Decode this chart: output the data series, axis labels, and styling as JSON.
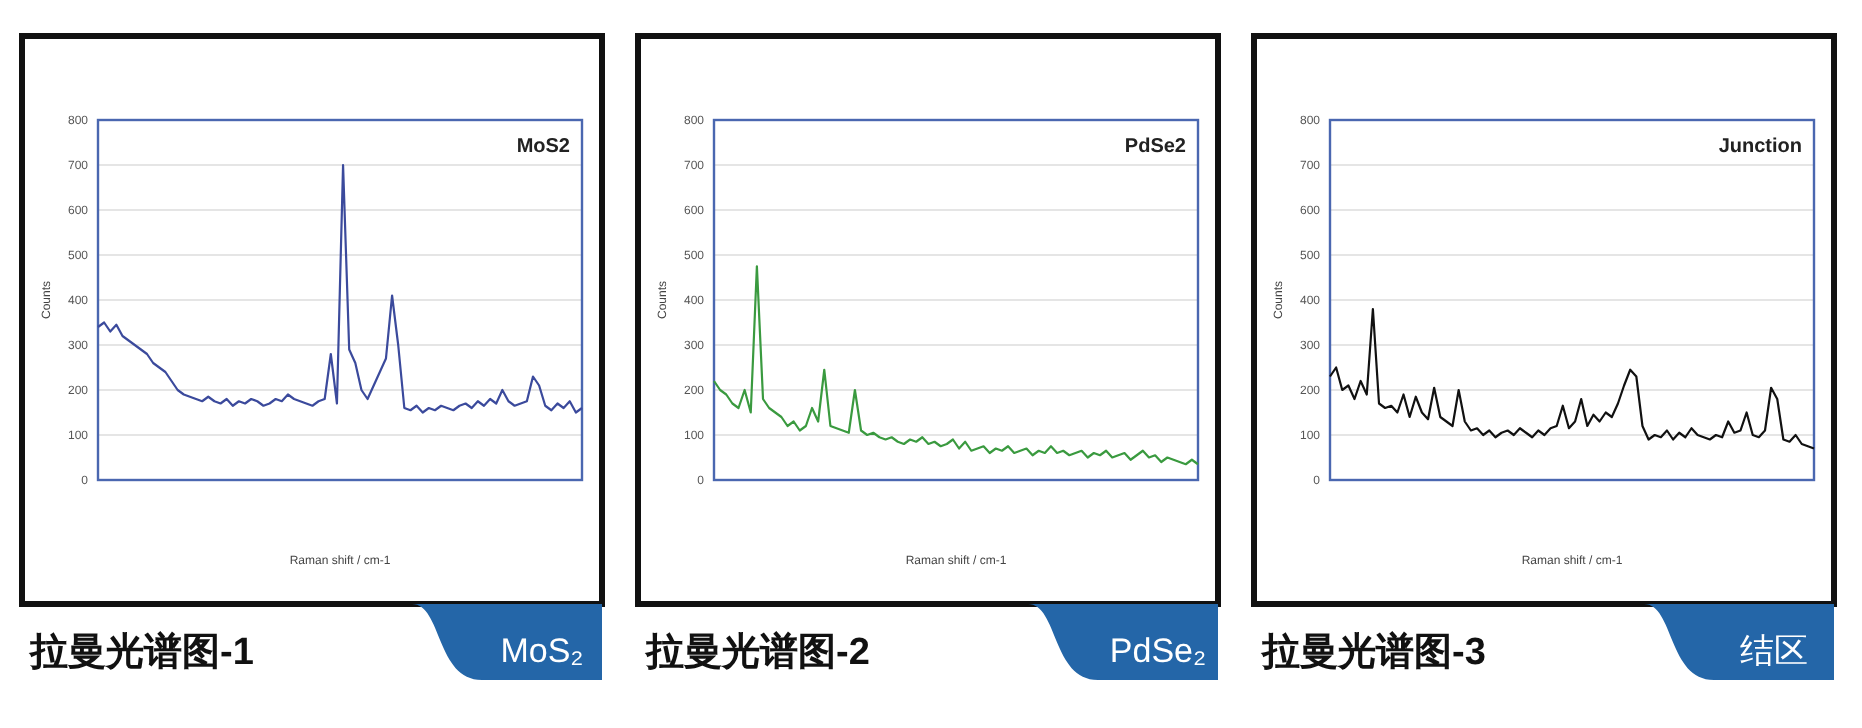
{
  "chart_data": [
    {
      "type": "line",
      "title": "拉曼光谱图-1",
      "subtitle": "MoS₂",
      "annotations": [
        "MoS2"
      ],
      "xlabel": "Raman shift / cm-1",
      "ylabel": "Counts",
      "ylim": [
        0,
        800
      ],
      "yticks": [
        0,
        100,
        200,
        300,
        400,
        500,
        600,
        700,
        800
      ],
      "grid": "y",
      "tick_labels": "y",
      "categories": [
        null,
        null,
        null,
        null,
        null,
        null,
        null,
        null,
        null,
        null,
        null,
        null,
        null,
        null,
        null,
        null,
        null,
        null,
        null,
        null,
        null,
        null,
        null,
        null,
        null,
        null,
        null,
        null,
        null,
        null,
        null,
        null,
        null,
        null,
        null,
        null,
        null,
        null,
        null,
        null,
        null,
        null,
        null,
        null,
        null,
        null,
        null,
        null,
        null,
        null,
        null,
        null,
        null,
        null,
        null,
        null,
        null,
        null,
        null,
        null,
        null,
        null,
        null,
        null,
        null,
        null,
        null,
        null,
        null,
        null,
        null,
        null,
        null,
        null,
        null,
        null,
        null,
        null,
        null,
        null
      ],
      "series": [
        {
          "color": "#3b4a9c",
          "values": [
            340,
            350,
            330,
            345,
            320,
            310,
            300,
            290,
            280,
            260,
            250,
            240,
            220,
            200,
            190,
            185,
            180,
            175,
            185,
            175,
            170,
            180,
            165,
            175,
            170,
            180,
            175,
            165,
            170,
            180,
            175,
            190,
            180,
            175,
            170,
            165,
            175,
            180,
            280,
            170,
            700,
            290,
            260,
            200,
            180,
            210,
            240,
            270,
            410,
            300,
            160,
            155,
            165,
            150,
            160,
            155,
            165,
            160,
            155,
            165,
            170,
            160,
            175,
            165,
            180,
            170,
            200,
            175,
            165,
            170,
            175,
            230,
            210,
            165,
            155,
            170,
            160,
            175,
            150,
            160
          ]
        }
      ]
    },
    {
      "type": "line",
      "title": "拉曼光谱图-2",
      "subtitle": "PdSe₂",
      "annotations": [
        "PdSe2"
      ],
      "xlabel": "Raman shift / cm-1",
      "ylabel": "Counts",
      "ylim": [
        0,
        800
      ],
      "yticks": [
        0,
        100,
        200,
        300,
        400,
        500,
        600,
        700,
        800
      ],
      "grid": "y",
      "tick_labels": "y",
      "categories": [
        null,
        null,
        null,
        null,
        null,
        null,
        null,
        null,
        null,
        null,
        null,
        null,
        null,
        null,
        null,
        null,
        null,
        null,
        null,
        null,
        null,
        null,
        null,
        null,
        null,
        null,
        null,
        null,
        null,
        null,
        null,
        null,
        null,
        null,
        null,
        null,
        null,
        null,
        null,
        null,
        null,
        null,
        null,
        null,
        null,
        null,
        null,
        null,
        null,
        null,
        null,
        null,
        null,
        null,
        null,
        null,
        null,
        null,
        null,
        null,
        null,
        null,
        null,
        null,
        null,
        null,
        null,
        null,
        null,
        null,
        null,
        null,
        null,
        null,
        null,
        null,
        null,
        null,
        null,
        null
      ],
      "series": [
        {
          "color": "#3a9a3f",
          "values": [
            220,
            200,
            190,
            170,
            160,
            200,
            150,
            475,
            180,
            160,
            150,
            140,
            120,
            130,
            110,
            120,
            160,
            130,
            245,
            120,
            115,
            110,
            105,
            200,
            110,
            100,
            105,
            95,
            90,
            95,
            85,
            80,
            90,
            85,
            95,
            80,
            85,
            75,
            80,
            90,
            70,
            85,
            65,
            70,
            75,
            60,
            70,
            65,
            75,
            60,
            65,
            70,
            55,
            65,
            60,
            75,
            60,
            65,
            55,
            60,
            65,
            50,
            60,
            55,
            65,
            50,
            55,
            60,
            45,
            55,
            65,
            50,
            55,
            40,
            50,
            45,
            40,
            35,
            45,
            35
          ]
        }
      ]
    },
    {
      "type": "line",
      "title": "拉曼光谱图-3",
      "subtitle": "结区",
      "annotations": [
        "Junction"
      ],
      "xlabel": "Raman shift / cm-1",
      "ylabel": "Counts",
      "ylim": [
        0,
        800
      ],
      "yticks": [
        0,
        100,
        200,
        300,
        400,
        500,
        600,
        700,
        800
      ],
      "grid": "y",
      "tick_labels": "y",
      "categories": [
        null,
        null,
        null,
        null,
        null,
        null,
        null,
        null,
        null,
        null,
        null,
        null,
        null,
        null,
        null,
        null,
        null,
        null,
        null,
        null,
        null,
        null,
        null,
        null,
        null,
        null,
        null,
        null,
        null,
        null,
        null,
        null,
        null,
        null,
        null,
        null,
        null,
        null,
        null,
        null,
        null,
        null,
        null,
        null,
        null,
        null,
        null,
        null,
        null,
        null,
        null,
        null,
        null,
        null,
        null,
        null,
        null,
        null,
        null,
        null,
        null,
        null,
        null,
        null,
        null,
        null,
        null,
        null,
        null,
        null,
        null,
        null,
        null,
        null,
        null,
        null,
        null,
        null,
        null,
        null
      ],
      "series": [
        {
          "color": "#111111",
          "values": [
            230,
            250,
            200,
            210,
            180,
            220,
            190,
            380,
            170,
            160,
            165,
            150,
            190,
            140,
            185,
            150,
            135,
            205,
            140,
            130,
            120,
            200,
            130,
            110,
            115,
            100,
            110,
            95,
            105,
            110,
            100,
            115,
            105,
            95,
            110,
            100,
            115,
            120,
            165,
            115,
            130,
            180,
            120,
            145,
            130,
            150,
            140,
            170,
            210,
            245,
            230,
            120,
            90,
            100,
            95,
            110,
            90,
            105,
            95,
            115,
            100,
            95,
            90,
            100,
            95,
            130,
            105,
            110,
            150,
            100,
            95,
            110,
            205,
            180,
            90,
            85,
            100,
            80,
            75,
            70
          ]
        }
      ]
    }
  ]
}
